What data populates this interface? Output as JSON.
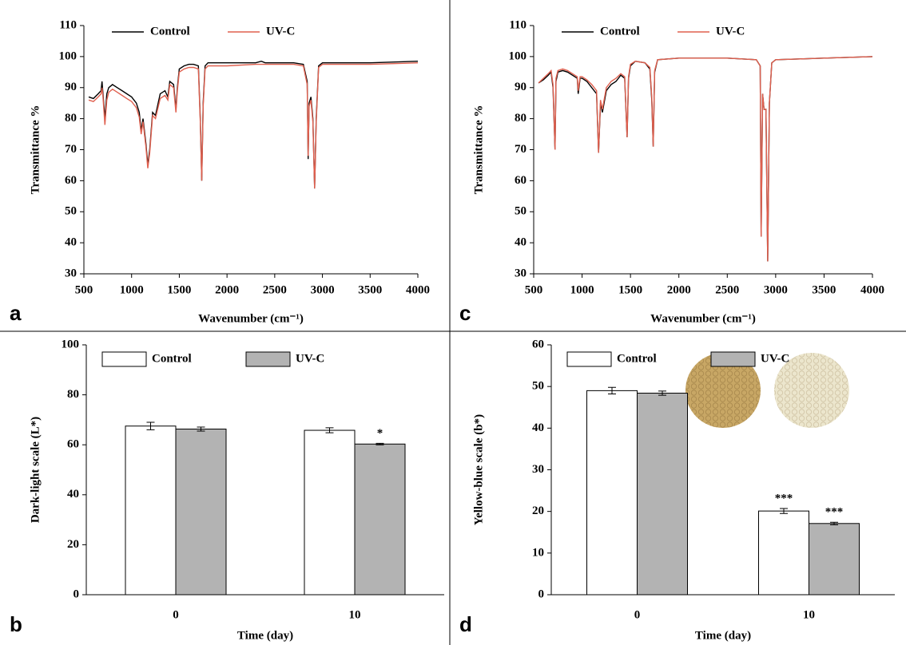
{
  "chart_data": [
    {
      "type": "line",
      "panel_label": "a",
      "x_label": "Wavenumber (cm⁻¹)",
      "y_label": "Transmittance %",
      "xlim": [
        500,
        4000
      ],
      "xticks": [
        500,
        1000,
        1500,
        2000,
        2500,
        3000,
        3500,
        4000
      ],
      "ylim": [
        30,
        110
      ],
      "yticks": [
        30,
        40,
        50,
        60,
        70,
        80,
        90,
        100,
        110
      ],
      "x": [
        550,
        600,
        650,
        680,
        690,
        700,
        720,
        740,
        760,
        800,
        850,
        900,
        950,
        1000,
        1050,
        1080,
        1100,
        1120,
        1150,
        1170,
        1190,
        1220,
        1250,
        1300,
        1350,
        1380,
        1400,
        1440,
        1465,
        1480,
        1500,
        1550,
        1600,
        1650,
        1700,
        1720,
        1735,
        1750,
        1770,
        1800,
        2000,
        2300,
        2360,
        2400,
        2700,
        2800,
        2840,
        2850,
        2860,
        2880,
        2900,
        2918,
        2935,
        2960,
        3000,
        3500,
        4000
      ],
      "series": [
        {
          "name": "Control",
          "color": "#000000",
          "values": [
            87,
            86.5,
            88,
            89,
            92,
            88,
            80,
            88,
            90,
            91,
            90,
            89,
            88,
            87,
            85,
            82,
            76,
            80,
            72,
            65,
            70,
            82,
            81,
            88,
            89,
            87,
            92,
            91,
            83,
            90,
            96,
            97,
            97.5,
            97.5,
            97,
            80,
            60,
            85,
            97,
            98,
            98,
            98,
            98.5,
            98,
            98,
            97.5,
            92,
            67,
            85,
            87,
            80,
            57.5,
            80,
            97,
            98,
            98,
            98.5
          ]
        },
        {
          "name": "UV-C",
          "color": "#e0604f",
          "values": [
            86,
            85.5,
            87,
            88,
            90,
            87,
            78,
            86,
            88.5,
            89.5,
            88.5,
            87.5,
            86.5,
            85.5,
            83.5,
            80.5,
            75,
            79,
            71,
            64,
            69,
            81,
            80,
            86.5,
            87.5,
            86,
            91,
            90,
            82,
            89,
            95,
            96,
            96.5,
            96.5,
            96,
            79,
            60,
            84,
            96,
            97,
            97,
            97.5,
            97.5,
            97.5,
            97.5,
            97,
            91,
            68,
            84,
            86,
            79,
            57.5,
            79,
            96.5,
            97.5,
            97.5,
            98
          ]
        }
      ]
    },
    {
      "type": "bar",
      "panel_label": "b",
      "x_label": "Time (day)",
      "y_label": "Dark-light scale (L*)",
      "ylim": [
        0,
        100
      ],
      "yticks": [
        0,
        20,
        40,
        60,
        80,
        100
      ],
      "categories": [
        "0",
        "10"
      ],
      "series": [
        {
          "name": "Control",
          "color": "#ffffff",
          "values": [
            67.5,
            65.8
          ],
          "errors": [
            1.5,
            1
          ],
          "significance": [
            null,
            null
          ]
        },
        {
          "name": "UV-C",
          "color": "#b3b3b3",
          "values": [
            66.3,
            60.3
          ],
          "errors": [
            0.8,
            0.3
          ],
          "significance": [
            null,
            "*"
          ]
        }
      ]
    },
    {
      "type": "line",
      "panel_label": "c",
      "x_label": "Wavenumber (cm⁻¹)",
      "y_label": "Transmittance %",
      "xlim": [
        500,
        4000
      ],
      "xticks": [
        500,
        1000,
        1500,
        2000,
        2500,
        3000,
        3500,
        4000
      ],
      "ylim": [
        30,
        110
      ],
      "yticks": [
        30,
        40,
        50,
        60,
        70,
        80,
        90,
        100,
        110
      ],
      "x": [
        550,
        600,
        650,
        680,
        700,
        720,
        730,
        750,
        800,
        850,
        900,
        950,
        960,
        980,
        1000,
        1050,
        1100,
        1150,
        1170,
        1190,
        1210,
        1250,
        1300,
        1350,
        1400,
        1440,
        1465,
        1480,
        1500,
        1550,
        1650,
        1700,
        1720,
        1735,
        1750,
        1780,
        2000,
        2500,
        2800,
        2840,
        2850,
        2865,
        2880,
        2900,
        2918,
        2935,
        2960,
        3000,
        3500,
        4000
      ],
      "series": [
        {
          "name": "Control",
          "color": "#000000",
          "values": [
            91.5,
            92.5,
            94,
            95,
            90,
            70,
            92,
            95,
            95.5,
            95,
            94,
            93,
            88,
            93,
            93,
            92,
            90,
            88,
            69,
            85,
            82,
            89,
            91,
            92,
            94,
            93,
            74,
            93,
            97,
            98.5,
            98,
            96,
            86,
            71,
            95,
            99,
            99.5,
            99.5,
            99,
            97,
            42,
            88,
            83,
            83,
            34,
            85,
            98,
            99,
            99.5,
            100
          ]
        },
        {
          "name": "UV-C",
          "color": "#e0604f",
          "values": [
            91.5,
            93,
            94.5,
            95.5,
            91,
            70,
            93,
            95.5,
            96,
            95.5,
            94.5,
            93.5,
            89,
            93.5,
            93.5,
            92.5,
            91,
            89,
            69,
            86,
            83,
            90,
            92,
            93,
            94.5,
            93.5,
            74,
            93.5,
            97.5,
            98.5,
            98,
            96.5,
            87,
            71,
            95.5,
            99,
            99.5,
            99.5,
            99,
            97,
            42,
            88,
            83,
            83,
            34,
            85,
            98,
            99,
            99.5,
            100
          ]
        }
      ]
    },
    {
      "type": "bar",
      "panel_label": "d",
      "x_label": "Time (day)",
      "y_label": "Yellow-blue scale (b*)",
      "ylim": [
        0,
        60
      ],
      "yticks": [
        0,
        10,
        20,
        30,
        40,
        50,
        60
      ],
      "categories": [
        "0",
        "10"
      ],
      "series": [
        {
          "name": "Control",
          "color": "#ffffff",
          "values": [
            49,
            20.1
          ],
          "errors": [
            0.8,
            0.6
          ],
          "significance": [
            null,
            "***"
          ]
        },
        {
          "name": "UV-C",
          "color": "#b3b3b3",
          "values": [
            48.4,
            17.1
          ],
          "errors": [
            0.5,
            0.3
          ],
          "significance": [
            null,
            "***"
          ]
        }
      ]
    }
  ]
}
